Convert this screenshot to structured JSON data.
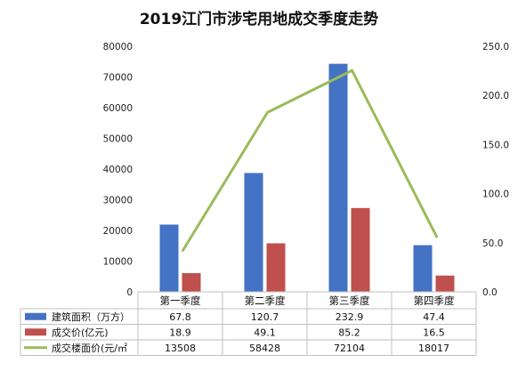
{
  "chart_data": {
    "type": "bar",
    "title": "2019江门市涉宅用地成交季度走势",
    "categories": [
      "第一季度",
      "第二季度",
      "第三季度",
      "第四季度"
    ],
    "y_left_ticks": [
      "0",
      "10000",
      "20000",
      "30000",
      "40000",
      "50000",
      "60000",
      "70000",
      "80000"
    ],
    "y_left_range": [
      0,
      80000
    ],
    "y_right_ticks": [
      "0.0",
      "50.0",
      "100.0",
      "150.0",
      "200.0",
      "250.0"
    ],
    "y_right_range": [
      0,
      250
    ],
    "grid": false,
    "legend": "data-table-left",
    "series": [
      {
        "name": "建筑面积（万方）",
        "kind": "bar",
        "axis": "left",
        "color": "#4472C4",
        "values": [
          21900,
          38700,
          74300,
          15200
        ],
        "table_values": [
          "67.8",
          "120.7",
          "232.9",
          "47.4"
        ]
      },
      {
        "name": "成交价(亿元)",
        "kind": "bar",
        "axis": "left",
        "color": "#C0504D",
        "values": [
          6100,
          15800,
          27300,
          5300
        ],
        "table_values": [
          "18.9",
          "49.1",
          "85.2",
          "16.5"
        ]
      },
      {
        "name": "成交楼面价(元/㎡",
        "kind": "line",
        "axis": "left",
        "color": "#9BBB59",
        "values": [
          13508,
          58428,
          72104,
          18017
        ],
        "table_values": [
          "13508",
          "58428",
          "72104",
          "18017"
        ]
      }
    ]
  }
}
